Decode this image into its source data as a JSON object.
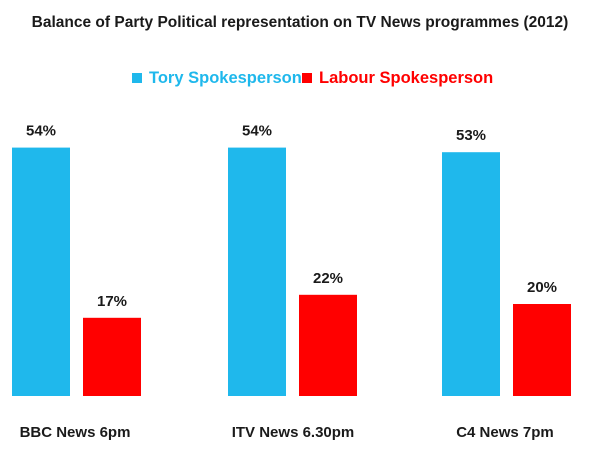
{
  "chart_data": {
    "type": "bar",
    "title": "Balance of Party Political representation on TV News programmes (2012)",
    "categories": [
      "BBC News  6pm",
      "ITV News 6.30pm",
      "C4 News 7pm"
    ],
    "series": [
      {
        "name": "Tory Spokesperson",
        "color": "#1fb8ec",
        "values": [
          54,
          54,
          53
        ],
        "labels": [
          "54%",
          "54%",
          "53%"
        ]
      },
      {
        "name": "Labour Spokesperson",
        "color": "#ff0000",
        "values": [
          17,
          22,
          20
        ],
        "labels": [
          "17%",
          "22%",
          "20%"
        ]
      }
    ],
    "ylim": [
      0,
      60
    ],
    "unit": "%",
    "grid": false,
    "legend_position": "top"
  }
}
